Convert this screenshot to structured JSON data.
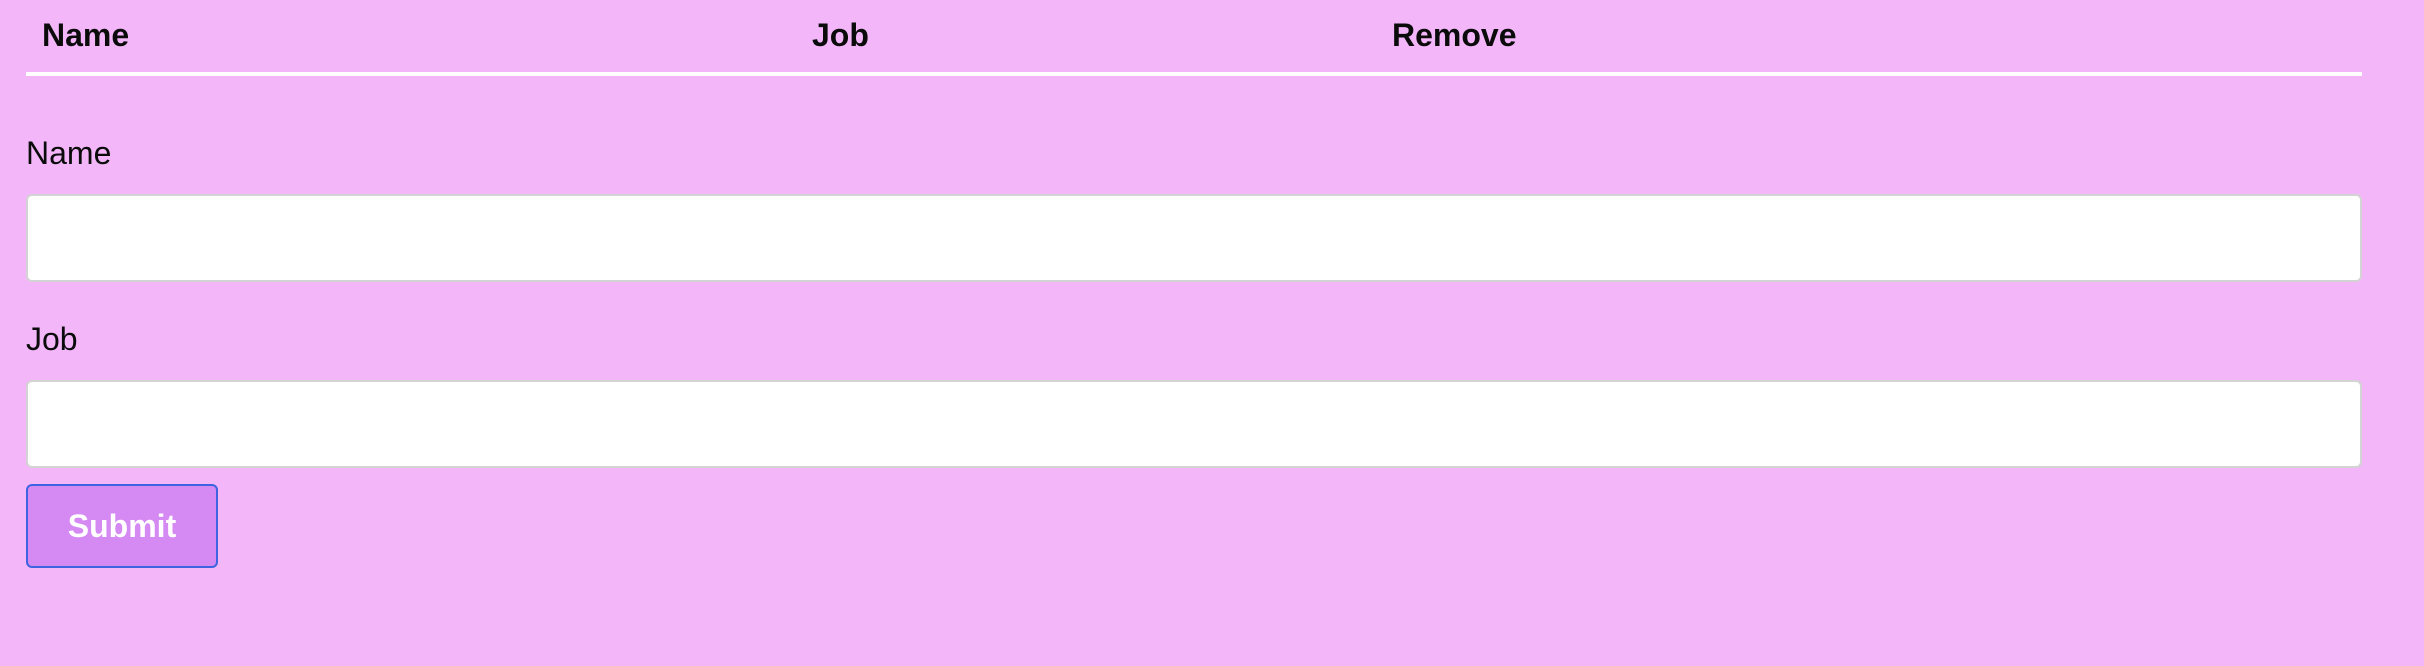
{
  "table": {
    "headers": {
      "name": "Name",
      "job": "Job",
      "remove": "Remove"
    },
    "rows": []
  },
  "form": {
    "name_label": "Name",
    "name_value": "",
    "job_label": "Job",
    "job_value": "",
    "submit_label": "Submit"
  },
  "colors": {
    "background": "#f2b6f9",
    "submit_background": "#d589f3",
    "submit_border": "#3d63e0",
    "divider": "#ffffff"
  }
}
